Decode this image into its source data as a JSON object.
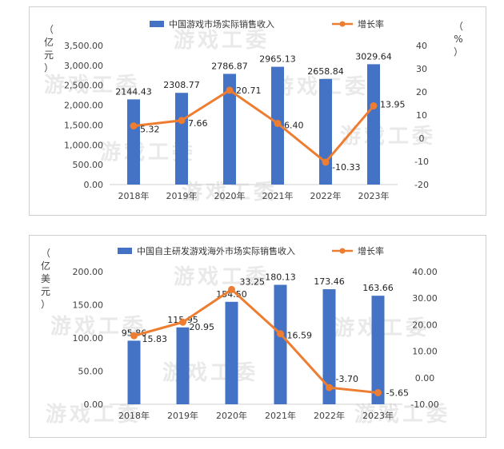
{
  "watermark": "游戏工委",
  "chart_data": [
    {
      "type": "bar",
      "categories": [
        "2018年",
        "2019年",
        "2020年",
        "2021年",
        "2022年",
        "2023年"
      ],
      "series": [
        {
          "name": "中国游戏市场实际销售收入",
          "type": "bar",
          "axis": "left",
          "color": "#4472c4",
          "values": [
            2144.43,
            2308.77,
            2786.87,
            2965.13,
            2658.84,
            3029.64
          ],
          "labels": [
            "2144.43",
            "2308.77",
            "2786.87",
            "2965.13",
            "2658.84",
            "3029.64"
          ]
        },
        {
          "name": "增长率",
          "type": "line",
          "axis": "right",
          "color": "#ed7d31",
          "values": [
            5.32,
            7.66,
            20.71,
            6.4,
            -10.33,
            13.95
          ],
          "labels": [
            "5.32",
            "7.66",
            "20.71",
            "6.40",
            "-10.33",
            "13.95"
          ]
        }
      ],
      "left_axis": {
        "unit_label": [
          "（",
          "亿",
          "元",
          "）"
        ],
        "ylim": [
          0,
          3500
        ],
        "ticks": [
          "0.00",
          "500.00",
          "1,000.00",
          "1,500.00",
          "2,000.00",
          "2,500.00",
          "3,000.00",
          "3,500.00"
        ]
      },
      "right_axis": {
        "unit_label": [
          "（",
          "%",
          "）"
        ],
        "ylim": [
          -20,
          40
        ],
        "ticks": [
          "-20",
          "-10",
          "0",
          "10",
          "20",
          "30",
          "40"
        ]
      },
      "legend_position": "top",
      "grid": false
    },
    {
      "type": "bar",
      "categories": [
        "2018年",
        "2019年",
        "2020年",
        "2021年",
        "2022年",
        "2023年"
      ],
      "series": [
        {
          "name": "中国自主研发游戏海外市场实际销售收入",
          "type": "bar",
          "axis": "left",
          "color": "#4472c4",
          "values": [
            95.86,
            115.95,
            154.5,
            180.13,
            173.46,
            163.66
          ],
          "labels": [
            "95.86",
            "115.95",
            "154.50",
            "180.13",
            "173.46",
            "163.66"
          ]
        },
        {
          "name": "增长率",
          "type": "line",
          "axis": "right",
          "color": "#ed7d31",
          "values": [
            15.83,
            20.95,
            33.25,
            16.59,
            -3.7,
            -5.65
          ],
          "labels": [
            "15.83",
            "20.95",
            "33.25",
            "16.59",
            "-3.70",
            "-5.65"
          ]
        }
      ],
      "left_axis": {
        "unit_label": [
          "（",
          "亿",
          "美",
          "元",
          "）"
        ],
        "ylim": [
          0,
          200
        ],
        "ticks": [
          "0.00",
          "50.00",
          "100.00",
          "150.00",
          "200.00"
        ]
      },
      "right_axis": {
        "unit_label": [],
        "ylim": [
          -10,
          40
        ],
        "ticks": [
          "-10.00",
          "0.00",
          "10.00",
          "20.00",
          "30.00",
          "40.00"
        ]
      },
      "legend_position": "top",
      "grid": false
    }
  ]
}
